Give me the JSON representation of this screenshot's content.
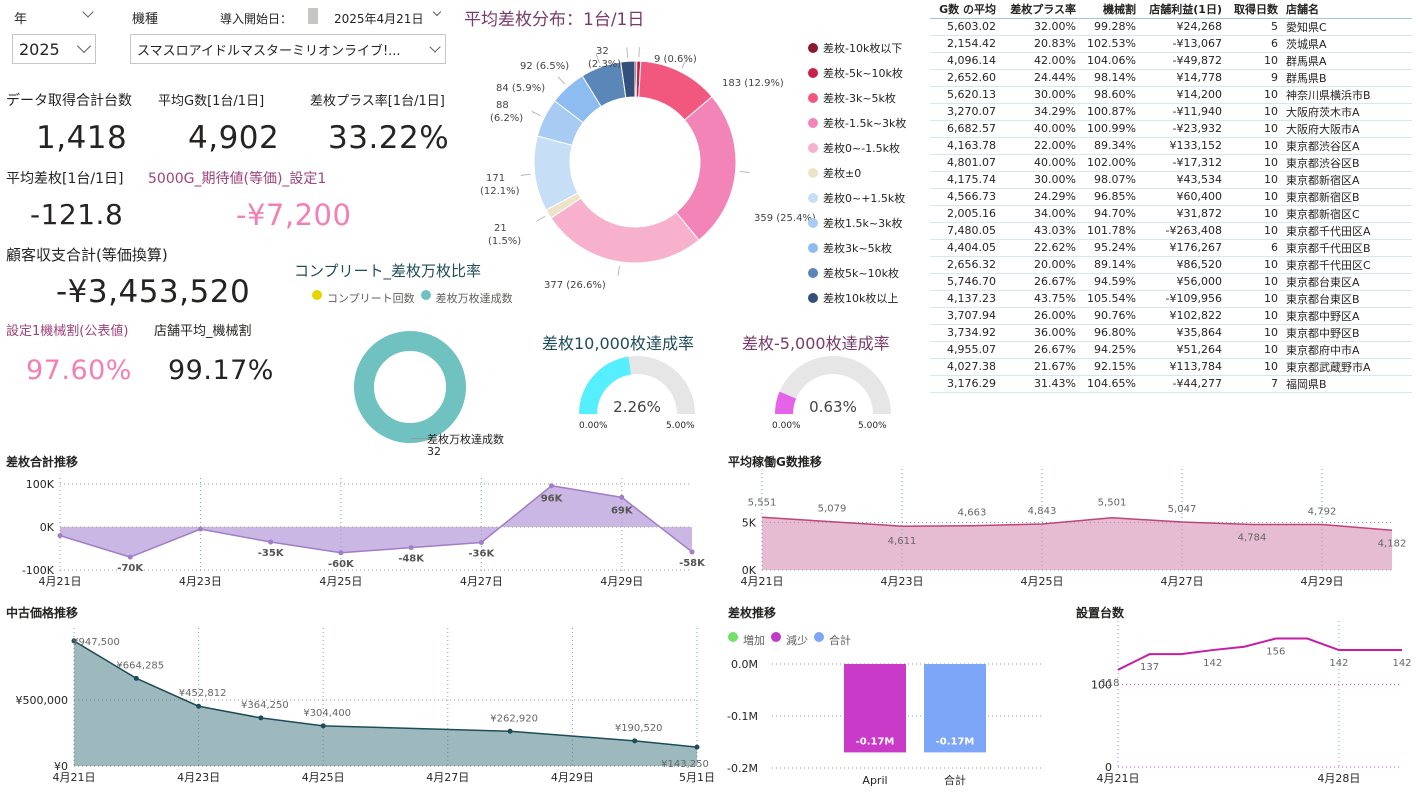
{
  "slicers": {
    "year_label": "年",
    "year_value": "2025",
    "model_label": "機種",
    "model_value": "スマスロアイドルマスターミリオンライブ!...",
    "start_label": "導入開始日：",
    "start_value": "2025年4月21日"
  },
  "kpis": {
    "data_count_label": "データ取得合計台数",
    "data_count": "1,418",
    "avg_g_label": "平均G数[1台/1日]",
    "avg_g": "4,902",
    "plus_rate_label": "差枚プラス率[1台/1日]",
    "plus_rate": "33.22%",
    "avg_diff_label": "平均差枚[1台/1日]",
    "avg_diff": "-121.8",
    "expected_label": "5000G_期待値(等価)_設定1",
    "expected": "-¥7,200",
    "customer_label": "顧客収支合計(等価換算)",
    "customer": "-¥3,453,520",
    "setting1_label": "設定1機械割(公表値)",
    "setting1": "97.60%",
    "store_avg_label": "店舗平均_機械割",
    "store_avg": "99.17%"
  },
  "donut": {
    "title": "平均差枚分布：1台/1日",
    "legend": [
      "差枚-10k枚以下",
      "差枚-5k~10k枚",
      "差枚-3k~5k枚",
      "差枚-1.5k~3k枚",
      "差枚0~-1.5k枚",
      "差枚±0",
      "差枚0~+1.5k枚",
      "差枚1.5k~3k枚",
      "差枚3k~5k枚",
      "差枚5k~10k枚",
      "差枚10k枚以上"
    ],
    "colors": [
      "#8b1a2b",
      "#c8224a",
      "#f2587e",
      "#f384b8",
      "#f7b1cc",
      "#ece3c9",
      "#c7def7",
      "#a8cbf3",
      "#8cbcf0",
      "#5b86b8",
      "#33507a"
    ],
    "values": [
      4,
      9,
      183,
      359,
      377,
      21,
      171,
      88,
      84,
      92,
      32
    ],
    "labels": [
      "",
      "9 (0.6%)",
      "183 (12.9%)",
      "359 (25.4%)",
      "377 (26.6%)",
      "21 (1.5%)",
      "171 (12.1%)",
      "88 (6.2%)",
      "84 (5.9%)",
      "92 (6.5%)",
      "32 (2.3%)"
    ]
  },
  "complete": {
    "title": "コンプリート_差枚万枚比率",
    "legend_complete": "コンプリート回数",
    "legend_10k": "差枚万枚達成数",
    "callout_label": "差枚万枚達成数",
    "callout_value": "32",
    "color_complete": "#e8d500",
    "color_10k": "#6fc2bf"
  },
  "gauge1": {
    "title": "差枚10,000枚達成率",
    "value_text": "2.26%",
    "min": "0.00%",
    "max": "5.00%",
    "fraction": 0.452,
    "color": "#55efff"
  },
  "gauge2": {
    "title": "差枚-5,000枚達成率",
    "value_text": "0.63%",
    "min": "0.00%",
    "max": "5.00%",
    "fraction": 0.126,
    "color": "#e463e8"
  },
  "table": {
    "headers": [
      "G数 の平均",
      "差枚プラス率",
      "機械割",
      "店舗利益(1日)",
      "取得日数",
      "店舗名"
    ],
    "rows": [
      [
        "5,603.02",
        "32.00%",
        "99.28%",
        "¥24,268",
        "5",
        "愛知県C"
      ],
      [
        "2,154.42",
        "20.83%",
        "102.53%",
        "-¥13,067",
        "6",
        "茨城県A"
      ],
      [
        "4,096.14",
        "42.00%",
        "104.06%",
        "-¥49,872",
        "10",
        "群馬県A"
      ],
      [
        "2,652.60",
        "24.44%",
        "98.14%",
        "¥14,778",
        "9",
        "群馬県B"
      ],
      [
        "5,620.13",
        "30.00%",
        "98.60%",
        "¥14,200",
        "10",
        "神奈川県横浜市B"
      ],
      [
        "3,270.07",
        "34.29%",
        "100.87%",
        "-¥11,940",
        "10",
        "大阪府茨木市A"
      ],
      [
        "6,682.57",
        "40.00%",
        "100.99%",
        "-¥23,932",
        "10",
        "大阪府大阪市A"
      ],
      [
        "4,163.78",
        "22.00%",
        "89.34%",
        "¥133,152",
        "10",
        "東京都渋谷区A"
      ],
      [
        "4,801.07",
        "40.00%",
        "102.00%",
        "-¥17,312",
        "10",
        "東京都渋谷区B"
      ],
      [
        "4,175.74",
        "30.00%",
        "98.07%",
        "¥43,534",
        "10",
        "東京都新宿区A"
      ],
      [
        "4,566.73",
        "24.29%",
        "96.85%",
        "¥60,400",
        "10",
        "東京都新宿区B"
      ],
      [
        "2,005.16",
        "34.00%",
        "94.70%",
        "¥31,872",
        "10",
        "東京都新宿区C"
      ],
      [
        "7,480.05",
        "43.03%",
        "101.78%",
        "-¥263,408",
        "10",
        "東京都千代田区A"
      ],
      [
        "4,404.05",
        "22.62%",
        "95.24%",
        "¥176,267",
        "6",
        "東京都千代田区B"
      ],
      [
        "2,656.32",
        "20.00%",
        "89.14%",
        "¥86,520",
        "10",
        "東京都千代田区C"
      ],
      [
        "5,746.70",
        "26.67%",
        "94.59%",
        "¥56,000",
        "10",
        "東京都台東区A"
      ],
      [
        "4,137.23",
        "43.75%",
        "105.54%",
        "-¥109,956",
        "10",
        "東京都台東区B"
      ],
      [
        "3,707.94",
        "26.00%",
        "90.76%",
        "¥102,822",
        "10",
        "東京都中野区A"
      ],
      [
        "3,734.92",
        "36.00%",
        "96.80%",
        "¥35,864",
        "10",
        "東京都中野区B"
      ],
      [
        "4,955.07",
        "26.67%",
        "94.25%",
        "¥51,264",
        "10",
        "東京都府中市A"
      ],
      [
        "4,027.38",
        "21.67%",
        "92.15%",
        "¥113,784",
        "10",
        "東京都武蔵野市A"
      ],
      [
        "3,176.29",
        "31.43%",
        "104.65%",
        "-¥44,277",
        "7",
        "福岡県B"
      ]
    ]
  },
  "chart_data": [
    {
      "type": "area",
      "title": "差枚合計推移",
      "x": [
        "4月21日",
        "4月22日",
        "4月23日",
        "4月24日",
        "4月25日",
        "4月26日",
        "4月27日",
        "4月28日",
        "4月29日",
        "4月30日"
      ],
      "values": [
        -20000,
        -70000,
        -5000,
        -35000,
        -60000,
        -48000,
        -36000,
        96000,
        69000,
        -58000
      ],
      "data_labels": [
        "",
        "-70K",
        "",
        "-35K",
        "-60K",
        "-48K",
        "-36K",
        "96K",
        "69K",
        "-58K"
      ],
      "x_ticks": [
        "4月21日",
        "4月23日",
        "4月25日",
        "4月27日",
        "4月29日"
      ],
      "y_ticks": [
        "100K",
        "0K",
        "-100K"
      ],
      "ylim": [
        -100000,
        100000
      ],
      "color": "#a07ec8"
    },
    {
      "type": "area",
      "title": "平均稼働G数推移",
      "x": [
        "4月21日",
        "4月22日",
        "4月23日",
        "4月24日",
        "4月25日",
        "4月26日",
        "4月27日",
        "4月28日",
        "4月29日",
        "4月30日"
      ],
      "values": [
        5551,
        5079,
        4611,
        4663,
        4843,
        5501,
        5047,
        4784,
        4792,
        4182
      ],
      "data_labels": [
        "5,551",
        "5,079",
        "4,611",
        "4,663",
        "4,843",
        "5,501",
        "5,047",
        "4,784",
        "4,792",
        "4,182"
      ],
      "x_ticks": [
        "4月21日",
        "4月23日",
        "4月25日",
        "4月27日",
        "4月29日"
      ],
      "y_ticks": [
        "5K",
        "0K"
      ],
      "ylim": [
        0,
        10000
      ],
      "color": "#c0437c"
    },
    {
      "type": "area",
      "title": "中古価格推移",
      "x": [
        "4月21日",
        "4月22日",
        "4月23日",
        "4月24日",
        "4月25日",
        "4月28日",
        "4月30日",
        "5月1日"
      ],
      "x_pos": [
        0,
        1,
        2,
        3,
        4,
        7,
        9,
        10
      ],
      "values": [
        947500,
        664285,
        452812,
        364250,
        304400,
        262920,
        190520,
        143250
      ],
      "data_labels": [
        "¥947,500",
        "¥664,285",
        "¥452,812",
        "¥364,250",
        "¥304,400",
        "¥262,920",
        "¥190,520",
        "¥143,250"
      ],
      "x_ticks": [
        "4月21日",
        "4月23日",
        "4月25日",
        "4月27日",
        "4月29日",
        "5月1日"
      ],
      "y_ticks": [
        "¥500,000",
        "¥0"
      ],
      "ylim": [
        0,
        1000000
      ],
      "color": "#1c4d58"
    },
    {
      "type": "bar",
      "title": "差枚推移",
      "legend": [
        "増加",
        "減少",
        "合計"
      ],
      "legend_colors": [
        "#72e06a",
        "#c03ac8",
        "#7ea6f8"
      ],
      "categories": [
        "April",
        "合計"
      ],
      "values": [
        -0.17,
        -0.17
      ],
      "data_labels": [
        "-0.17M",
        "-0.17M"
      ],
      "y_ticks": [
        "0.0M",
        "-0.1M",
        "-0.2M"
      ],
      "ylim": [
        -0.2,
        0
      ],
      "colors": [
        "#c93ac8",
        "#7ea6f8"
      ]
    },
    {
      "type": "line",
      "title": "設置台数",
      "x": [
        "4月21日",
        "4月22日",
        "4月23日",
        "4月24日",
        "4月25日",
        "4月26日",
        "4月27日",
        "4月28日",
        "4月29日",
        "4月30日"
      ],
      "values": [
        118,
        137,
        137,
        142,
        146,
        156,
        156,
        142,
        142,
        142
      ],
      "data_labels": [
        "118",
        "137",
        "",
        "142",
        "",
        "156",
        "",
        "142",
        "",
        "142"
      ],
      "x_ticks": [
        "4月21日",
        "4月28日"
      ],
      "y_ticks": [
        "100",
        "0"
      ],
      "ylim": [
        0,
        170
      ],
      "color": "#c51ea5"
    }
  ]
}
